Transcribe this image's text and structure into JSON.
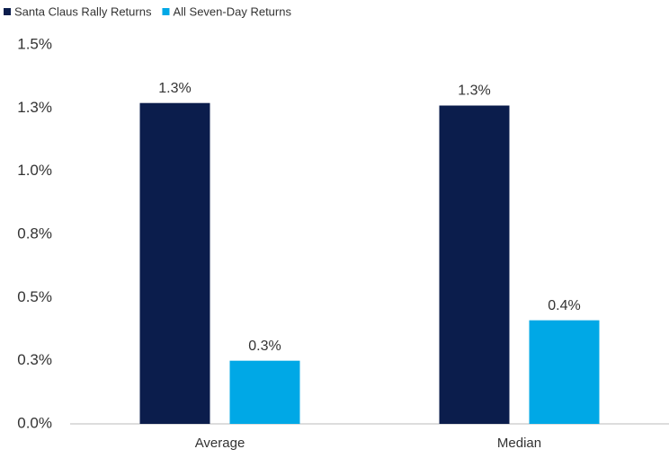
{
  "chart_data": {
    "type": "bar",
    "categories": [
      "Average",
      "Median"
    ],
    "series": [
      {
        "name": "Santa Claus Rally Returns",
        "color": "#0b1d4c",
        "values": [
          1.27,
          1.26
        ],
        "value_labels": [
          "1.3%",
          "1.3%"
        ]
      },
      {
        "name": "All Seven-Day Returns",
        "color": "#00a8e6",
        "values": [
          0.25,
          0.41
        ],
        "value_labels": [
          "0.3%",
          "0.4%"
        ]
      }
    ],
    "ylim": [
      0,
      1.5
    ],
    "yticks": [
      {
        "value": 0,
        "label": "0.0%"
      },
      {
        "value": 0.25,
        "label": "0.3%"
      },
      {
        "value": 0.5,
        "label": "0.5%"
      },
      {
        "value": 0.75,
        "label": "0.8%"
      },
      {
        "value": 1.0,
        "label": "1.0%"
      },
      {
        "value": 1.25,
        "label": "1.3%"
      },
      {
        "value": 1.5,
        "label": "1.5%"
      }
    ],
    "legend": "top-left",
    "grid": false
  }
}
